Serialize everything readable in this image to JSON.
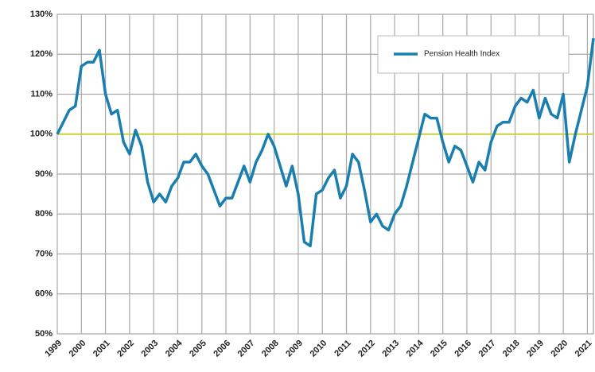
{
  "chart_data": {
    "type": "line",
    "series": [
      {
        "name": "Pension Health Index",
        "color": "#1a7fae",
        "x": [
          1999.0,
          1999.25,
          1999.5,
          1999.75,
          2000.0,
          2000.25,
          2000.5,
          2000.75,
          2001.0,
          2001.25,
          2001.5,
          2001.75,
          2002.0,
          2002.25,
          2002.5,
          2002.75,
          2003.0,
          2003.25,
          2003.5,
          2003.75,
          2004.0,
          2004.25,
          2004.5,
          2004.75,
          2005.0,
          2005.25,
          2005.5,
          2005.75,
          2006.0,
          2006.25,
          2006.5,
          2006.75,
          2007.0,
          2007.25,
          2007.5,
          2007.75,
          2008.0,
          2008.25,
          2008.5,
          2008.75,
          2009.0,
          2009.25,
          2009.5,
          2009.75,
          2010.0,
          2010.25,
          2010.5,
          2010.75,
          2011.0,
          2011.25,
          2011.5,
          2011.75,
          2012.0,
          2012.25,
          2012.5,
          2012.75,
          2013.0,
          2013.25,
          2013.5,
          2013.75,
          2014.0,
          2014.25,
          2014.5,
          2014.75,
          2015.0,
          2015.25,
          2015.5,
          2015.75,
          2016.0,
          2016.25,
          2016.5,
          2016.75,
          2017.0,
          2017.25,
          2017.5,
          2017.75,
          2018.0,
          2018.25,
          2018.5,
          2018.75,
          2019.0,
          2019.25,
          2019.5,
          2019.75,
          2020.0,
          2020.25,
          2020.5,
          2020.75,
          2021.0,
          2021.25
        ],
        "values": [
          100,
          103,
          106,
          107,
          117,
          118,
          118,
          121,
          110,
          105,
          106,
          98,
          95,
          101,
          97,
          88,
          83,
          85,
          83,
          87,
          89,
          93,
          93,
          95,
          92,
          90,
          86,
          82,
          84,
          84,
          88,
          92,
          88,
          93,
          96,
          100,
          97,
          92,
          87,
          92,
          85,
          73,
          72,
          85,
          86,
          89,
          91,
          84,
          87,
          95,
          93,
          86,
          78,
          80,
          77,
          76,
          80,
          82,
          87,
          93,
          99,
          105,
          104,
          104,
          98,
          93,
          97,
          96,
          92,
          88,
          93,
          91,
          98,
          102,
          103,
          103,
          107,
          109,
          108,
          111,
          104,
          109,
          105,
          104,
          110,
          93,
          100,
          106,
          112,
          124
        ]
      }
    ],
    "xlim": [
      1999,
      2021.25
    ],
    "xticks": [
      1999,
      2000,
      2001,
      2002,
      2003,
      2004,
      2005,
      2006,
      2007,
      2008,
      2009,
      2010,
      2011,
      2012,
      2013,
      2014,
      2015,
      2016,
      2017,
      2018,
      2019,
      2020,
      2021
    ],
    "ylim": [
      50,
      130
    ],
    "yticks": [
      {
        "value": 50,
        "label": "50%"
      },
      {
        "value": 60,
        "label": "60%"
      },
      {
        "value": 70,
        "label": "70%"
      },
      {
        "value": 80,
        "label": "80%"
      },
      {
        "value": 90,
        "label": "90%"
      },
      {
        "value": 100,
        "label": "100%"
      },
      {
        "value": 110,
        "label": "110%"
      },
      {
        "value": 120,
        "label": "120%"
      },
      {
        "value": 130,
        "label": "130%"
      }
    ],
    "reference_line": {
      "value": 100,
      "color": "#c8d23c"
    },
    "grid": true,
    "legend": "upper right"
  }
}
